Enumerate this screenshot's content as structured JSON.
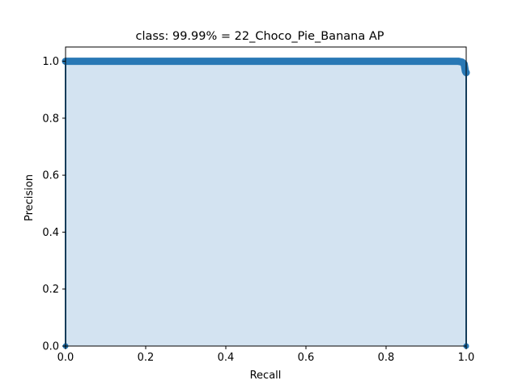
{
  "chart_data": {
    "type": "area",
    "title": "class: 99.99% = 22_Choco_Pie_Banana AP",
    "xlabel": "Recall",
    "ylabel": "Precision",
    "xlim": [
      0.0,
      1.0
    ],
    "ylim": [
      0.0,
      1.05
    ],
    "xticks": [
      "0.0",
      "0.2",
      "0.4",
      "0.6",
      "0.8",
      "1.0"
    ],
    "yticks": [
      "0.0",
      "0.2",
      "0.4",
      "0.6",
      "0.8",
      "1.0"
    ],
    "grid": false,
    "legend": "none",
    "series": [
      {
        "x": [
          0.0,
          0.0,
          0.002,
          0.1,
          0.2,
          0.3,
          0.4,
          0.5,
          0.6,
          0.7,
          0.8,
          0.9,
          0.98,
          0.99,
          0.995,
          0.998,
          1.0,
          1.0
        ],
        "y": [
          0.0,
          1.0,
          1.0,
          1.0,
          1.0,
          1.0,
          1.0,
          1.0,
          1.0,
          1.0,
          1.0,
          1.0,
          1.0,
          0.997,
          0.99,
          0.965,
          0.96,
          0.0
        ]
      }
    ],
    "colors": {
      "line": "#2878b5",
      "fill": "#d3e3f1",
      "axes": "#000000"
    }
  }
}
